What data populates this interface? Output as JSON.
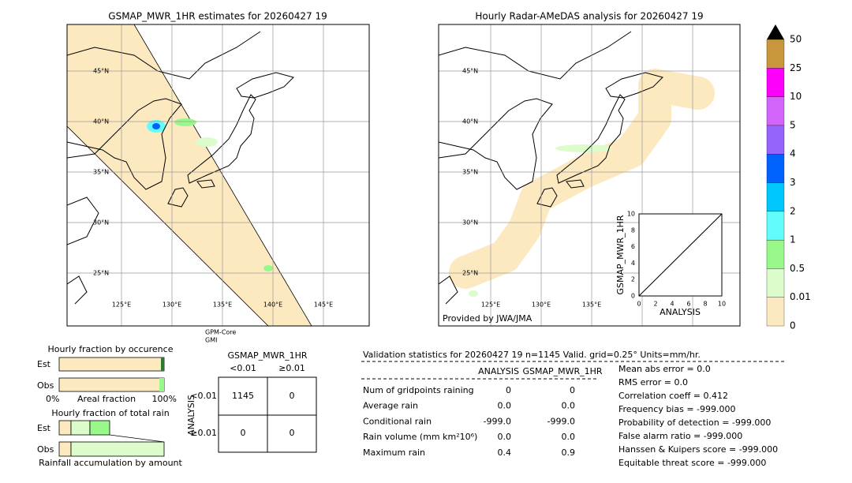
{
  "left_map": {
    "title": "GSMAP_MWR_1HR estimates for 20260427 19",
    "lat_labels": [
      "45°N",
      "40°N",
      "35°N",
      "30°N",
      "25°N"
    ],
    "lon_labels": [
      "125°E",
      "130°E",
      "135°E",
      "140°E",
      "145°E"
    ],
    "satellite": [
      "GPM-Core",
      "GMI"
    ]
  },
  "right_map": {
    "title": "Hourly Radar-AMeDAS analysis for 20260427 19",
    "lat_labels": [
      "45°N",
      "40°N",
      "35°N",
      "30°N",
      "25°N"
    ],
    "lon_labels": [
      "125°E",
      "130°E",
      "135°E"
    ],
    "credit": "Provided by JWA/JMA",
    "inset": {
      "ylabel": "GSMAP_MWR_1HR",
      "xlabel": "ANALYSIS",
      "ticks": [
        0,
        2,
        4,
        6,
        8,
        10
      ]
    }
  },
  "colorbar": {
    "labels": [
      "0",
      "0.01",
      "0.5",
      "1",
      "2",
      "3",
      "4",
      "5",
      "10",
      "25",
      "50"
    ],
    "colors": [
      "#fde9c0",
      "#dcfccc",
      "#98f98a",
      "#62fcfc",
      "#00c8fc",
      "#0064fc",
      "#9664fc",
      "#d264fc",
      "#fc00fc",
      "#c8963c"
    ]
  },
  "occurrence": {
    "title": "Hourly fraction by occurence",
    "rows": [
      "Est",
      "Obs"
    ],
    "axis": [
      "0%",
      "Areal fraction",
      "100%"
    ]
  },
  "total_rain": {
    "title": "Hourly fraction of total rain",
    "rows": [
      "Est",
      "Obs"
    ],
    "xlabel": "Rainfall accumulation by amount"
  },
  "contingency": {
    "title": "GSMAP_MWR_1HR",
    "cols": [
      "<0.01",
      "≥0.01"
    ],
    "ylabel": "ANALYSIS",
    "rows": [
      "<0.01",
      "≥0.01"
    ],
    "cells": [
      [
        "1145",
        "0"
      ],
      [
        "0",
        "0"
      ]
    ]
  },
  "validation": {
    "header": "Validation statistics for 20260427 19  n=1145 Valid. grid=0.25° Units=mm/hr.",
    "columns": [
      "ANALYSIS",
      "GSMAP_MWR_1HR"
    ],
    "rows": [
      [
        "Num of gridpoints raining",
        "0",
        "0"
      ],
      [
        "Average rain",
        "0.0",
        "0.0"
      ],
      [
        "Conditional rain",
        "-999.0",
        "-999.0"
      ],
      [
        "Rain volume (mm km²10⁶)",
        "0.0",
        "0.0"
      ],
      [
        "Maximum rain",
        "0.4",
        "0.9"
      ]
    ],
    "scores": [
      "Mean abs error =    0.0",
      "RMS error =    0.0",
      "Correlation coeff =  0.412",
      "Frequency bias = -999.000",
      "Probability of detection = -999.000",
      "False alarm ratio = -999.000",
      "Hanssen & Kuipers score = -999.000",
      "Equitable threat score = -999.000"
    ]
  }
}
